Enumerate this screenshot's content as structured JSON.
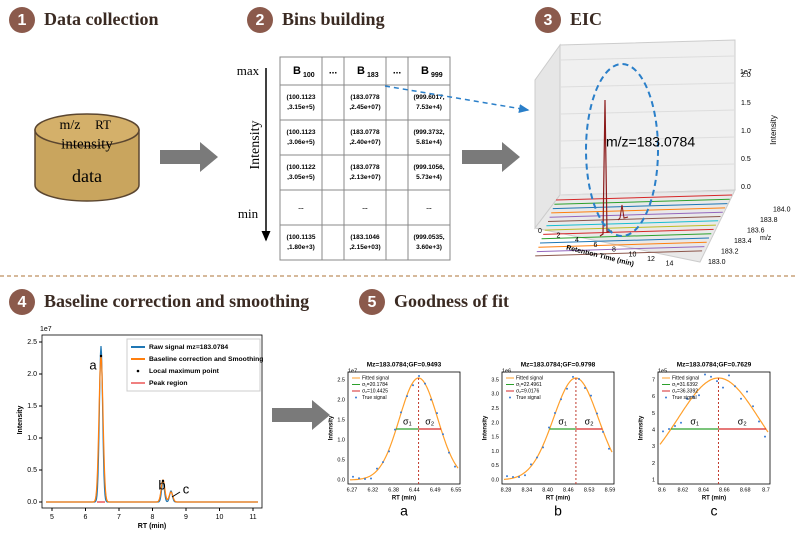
{
  "steps": [
    {
      "number": "1",
      "title": "Data collection"
    },
    {
      "number": "2",
      "title": "Bins building"
    },
    {
      "number": "3",
      "title": "EIC"
    },
    {
      "number": "4",
      "title": "Baseline correction and smoothing"
    },
    {
      "number": "5",
      "title": "Goodness of fit"
    }
  ],
  "data_store": {
    "labels": [
      "m/z",
      "RT",
      "intensity",
      "data"
    ]
  },
  "bins": {
    "axis": {
      "max": "max",
      "min": "min",
      "label": "Intensity"
    },
    "headers": [
      {
        "main": "B",
        "sub": "100"
      },
      "...",
      {
        "main": "B",
        "sub": "183"
      },
      "...",
      {
        "main": "B",
        "sub": "999"
      }
    ],
    "rows": [
      [
        [
          "(100.1123",
          ",3.15e+5)"
        ],
        [
          "(183.0778",
          ",2.45e+07)"
        ],
        [
          "(999.6017,",
          "7.53e+4)"
        ]
      ],
      [
        [
          "(100.1123",
          ",3.06e+5)"
        ],
        [
          "(183.0778",
          ",2.40e+07)"
        ],
        [
          "(999.3732,",
          "5.81e+4)"
        ]
      ],
      [
        [
          "(100.1122",
          ",3.05e+5)"
        ],
        [
          "(183.0778",
          ",2.13e+07)"
        ],
        [
          "(999.1056,",
          "5.73e+4)"
        ]
      ],
      [
        [
          "..."
        ],
        [
          "..."
        ],
        [
          "..."
        ]
      ],
      [
        [
          "(100.1135",
          ",1.80e+3)"
        ],
        [
          "(183.1046",
          ",2.15e+03)"
        ],
        [
          "(999.0535,",
          "3.60e+3)"
        ]
      ]
    ]
  },
  "eic": {
    "label": "m/z=183.0784",
    "z_scale": "1e7",
    "z_label": "Intensity",
    "z_ticks": [
      "0.0",
      "0.5",
      "1.0",
      "1.5",
      "2.0"
    ],
    "x_label": "Retention Time (min)",
    "x_ticks": [
      "0",
      "2",
      "4",
      "6",
      "8",
      "10",
      "12",
      "14"
    ],
    "y_label": "m/z",
    "y_ticks": [
      "183.0",
      "183.2",
      "183.4",
      "183.6",
      "183.8",
      "184.0"
    ]
  },
  "baseline": {
    "scale": "1e7",
    "y_label": "Intensity",
    "x_label": "RT (min)",
    "y_ticks": [
      "0.0",
      "0.5",
      "1.0",
      "1.5",
      "2.0",
      "2.5"
    ],
    "x_ticks": [
      "5",
      "6",
      "7",
      "8",
      "9",
      "10",
      "11"
    ],
    "legend": [
      "Raw signal mz=183.0784",
      "Baseline correction and Smoothing",
      "Local maximum point",
      "Peak region"
    ],
    "annotations": [
      "a",
      "b",
      "c"
    ]
  },
  "fits": [
    {
      "title": "Mz=183.0784;GF=0.9493",
      "scale": "1e7",
      "legend": [
        "Fitted signal",
        "σ₁=20.1784",
        "σ₂=10.4425",
        "True signal"
      ],
      "x_ticks": [
        "6.27",
        "6.32",
        "6.38",
        "6.44",
        "6.49",
        "6.55"
      ],
      "y_ticks": [
        "0.0",
        "0.5",
        "1.0",
        "1.5",
        "2.0",
        "2.5"
      ],
      "sigmas": [
        "σ₁",
        "σ₂"
      ],
      "y_label": "Intensity",
      "x_label": "RT (min)",
      "caption": "a"
    },
    {
      "title": "Mz=183.0784;GF=0.9798",
      "scale": "1e6",
      "legend": [
        "Fitted signal",
        "σ₁=22.4961",
        "σ₂=9.0176",
        "True signal"
      ],
      "x_ticks": [
        "8.28",
        "8.34",
        "8.40",
        "8.46",
        "8.53",
        "8.59"
      ],
      "y_ticks": [
        "0.0",
        "0.5",
        "1.0",
        "1.5",
        "2.0",
        "2.5",
        "3.0",
        "3.5"
      ],
      "sigmas": [
        "σ₁",
        "σ₂"
      ],
      "y_label": "Intensity",
      "x_label": "RT (min)",
      "caption": "b"
    },
    {
      "title": "Mz=183.0784;GF=0.7629",
      "scale": "1e5",
      "legend": [
        "Fitted signal",
        "σ₁=31.6392",
        "σ₂=36.3392",
        "True signal"
      ],
      "x_ticks": [
        "8.6",
        "8.62",
        "8.64",
        "8.66",
        "8.68",
        "8.7"
      ],
      "y_ticks": [
        "1",
        "2",
        "3",
        "4",
        "5",
        "6",
        "7"
      ],
      "sigmas": [
        "σ₁",
        "σ₂"
      ],
      "y_label": "Intensity",
      "x_label": "RT (min)",
      "caption": "c"
    }
  ]
}
